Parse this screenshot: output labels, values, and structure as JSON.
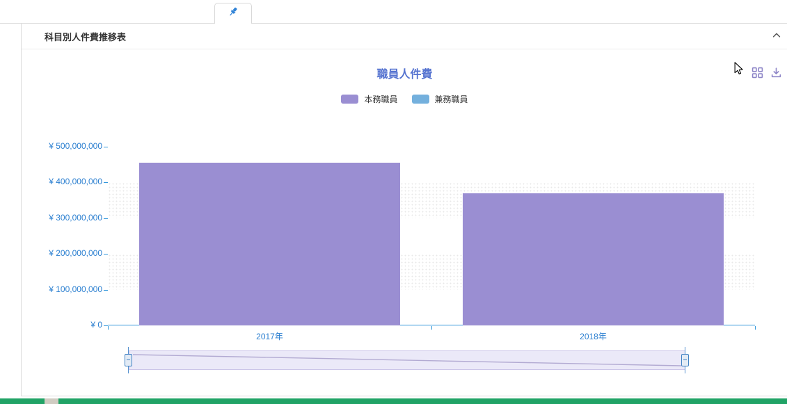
{
  "ui": {
    "tab": {
      "icon": "pushpin-icon"
    },
    "panel": {
      "title": "科目別人件費推移表",
      "collapse_icon": "chevron-up-icon"
    },
    "toolbox": {
      "icons": [
        "data-view-grid-icon",
        "download-icon"
      ]
    },
    "colors": {
      "chart_title": "#5573d0",
      "axis_label": "#2b7fd0",
      "axis_line": "#3398db",
      "toolbox_icon": "#8d85c7",
      "datazoom_fill": "#ebe9f8",
      "datazoom_handle": "#4383c4",
      "taskbar_strip": "#21a366"
    }
  },
  "chart_data": {
    "type": "bar",
    "title": "職員人件費",
    "categories": [
      "2017年",
      "2018年"
    ],
    "series": [
      {
        "name": "本務職員",
        "color": "#9a8ed2",
        "values": [
          455000000,
          370000000
        ]
      },
      {
        "name": "兼務職員",
        "color": "#74b0dd",
        "values": [
          0,
          0
        ]
      }
    ],
    "ylim": [
      0,
      500000000
    ],
    "y_tick_interval": 100000000,
    "y_tick_labels_top_to_bottom": [
      "¥ 500,000,000",
      "¥ 400,000,000",
      "¥ 300,000,000",
      "¥ 200,000,000",
      "¥ 100,000,000",
      "¥ 0"
    ],
    "xlabel": "",
    "ylabel": "",
    "legend_position": "top",
    "grid": false,
    "split_band_intervals_from_top": [
      1,
      3
    ],
    "datazoom": {
      "start_percent": 0,
      "end_percent": 100
    }
  }
}
